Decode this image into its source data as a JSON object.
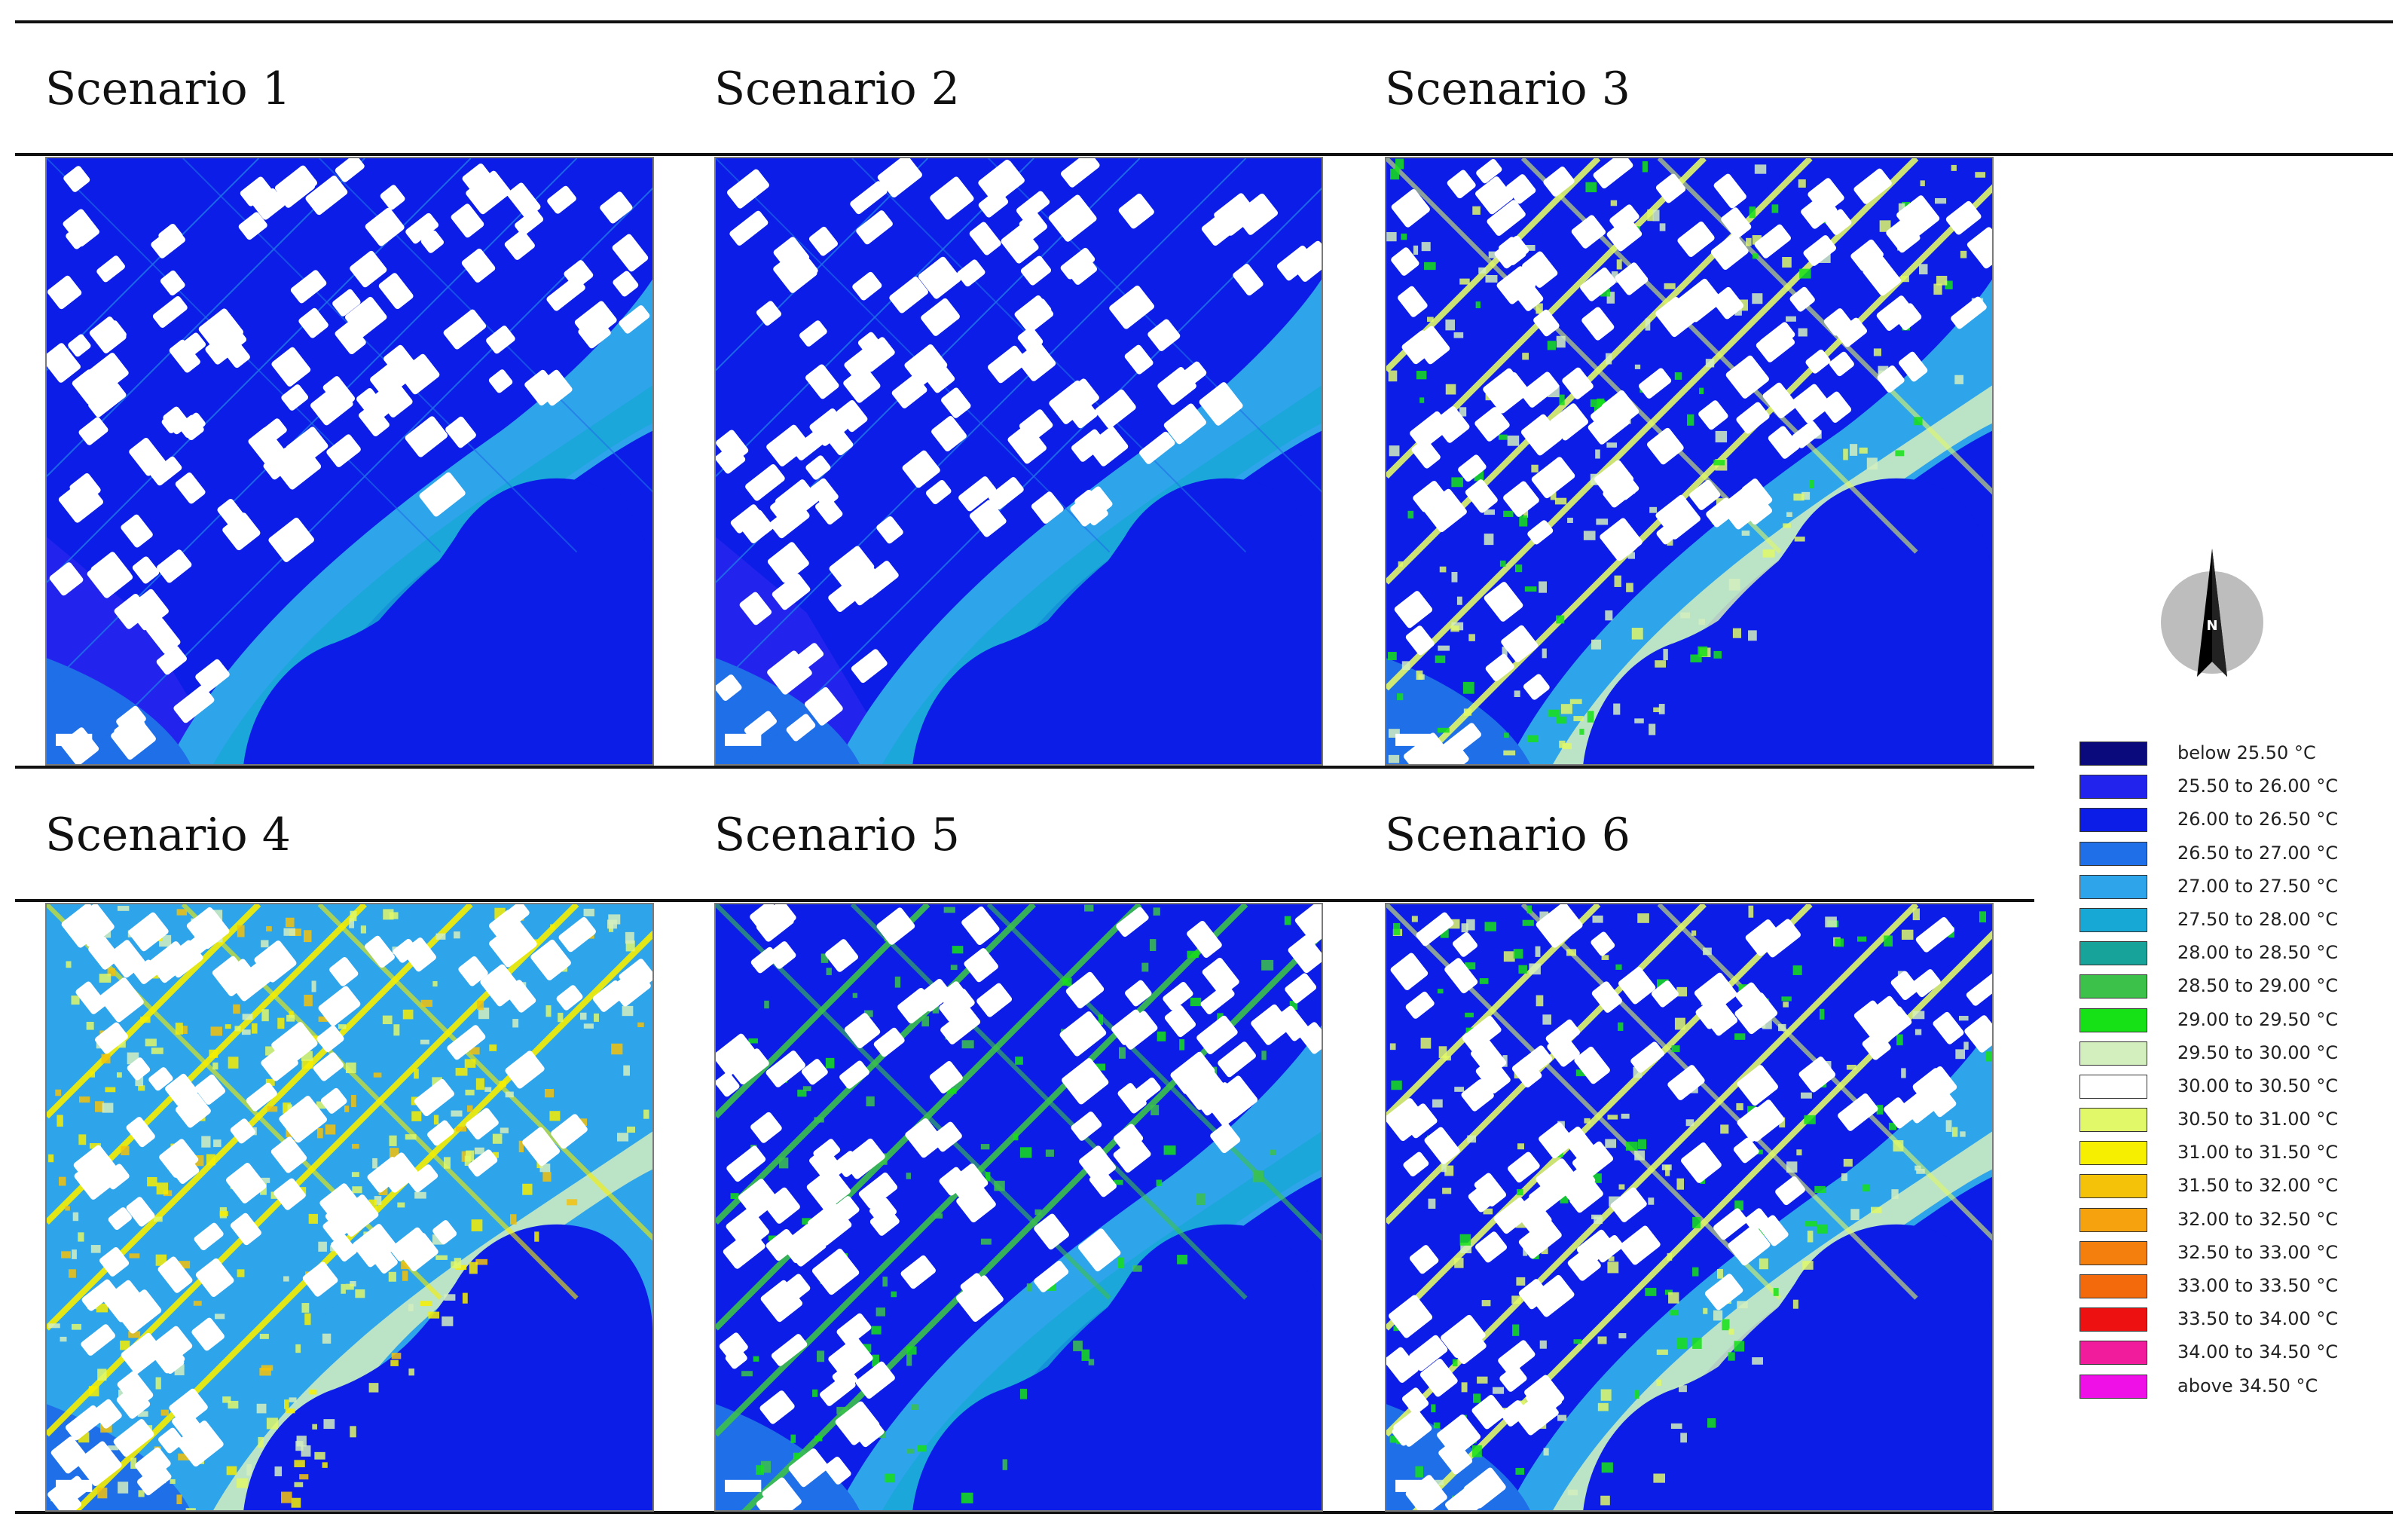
{
  "figure": {
    "panels": [
      {
        "label": "Scenario 1",
        "heat_level": 0
      },
      {
        "label": "Scenario 2",
        "heat_level": 0
      },
      {
        "label": "Scenario 3",
        "heat_level": 2
      },
      {
        "label": "Scenario 4",
        "heat_level": 3
      },
      {
        "label": "Scenario 5",
        "heat_level": 1
      },
      {
        "label": "Scenario 6",
        "heat_level": 2
      }
    ]
  },
  "legend": {
    "items": [
      {
        "label": "below 25.50 °C",
        "color": "#0a0a7d"
      },
      {
        "label": "25.50 to 26.00 °C",
        "color": "#2323ee"
      },
      {
        "label": "26.00 to 26.50 °C",
        "color": "#0b1de6"
      },
      {
        "label": "26.50 to 27.00 °C",
        "color": "#1f6fe8"
      },
      {
        "label": "27.00 to 27.50 °C",
        "color": "#2ea4ea"
      },
      {
        "label": "27.50 to 28.00 °C",
        "color": "#17a8d6"
      },
      {
        "label": "28.00 to 28.50 °C",
        "color": "#17a39a"
      },
      {
        "label": "28.50 to 29.00 °C",
        "color": "#3cc24a"
      },
      {
        "label": "29.00 to 29.50 °C",
        "color": "#16e016"
      },
      {
        "label": "29.50 to 30.00 °C",
        "color": "#d4efbe"
      },
      {
        "label": "30.00 to 30.50 °C",
        "color": "#ffffff"
      },
      {
        "label": "30.50 to 31.00 °C",
        "color": "#e1f868"
      },
      {
        "label": "31.00 to 31.50 °C",
        "color": "#f7ef00"
      },
      {
        "label": "31.50 to 32.00 °C",
        "color": "#f5c20a"
      },
      {
        "label": "32.00 to 32.50 °C",
        "color": "#f5a20e"
      },
      {
        "label": "32.50 to 33.00 °C",
        "color": "#f47f0c"
      },
      {
        "label": "33.00 to 33.50 °C",
        "color": "#f26a0c"
      },
      {
        "label": "33.50 to 34.00 °C",
        "color": "#ee1111"
      },
      {
        "label": "34.00 to 34.50 °C",
        "color": "#f01c9c"
      },
      {
        "label": "above 34.50 °C",
        "color": "#ee10e6"
      }
    ]
  },
  "north_arrow": {
    "letter": "N",
    "icon": "north-arrow-icon"
  }
}
